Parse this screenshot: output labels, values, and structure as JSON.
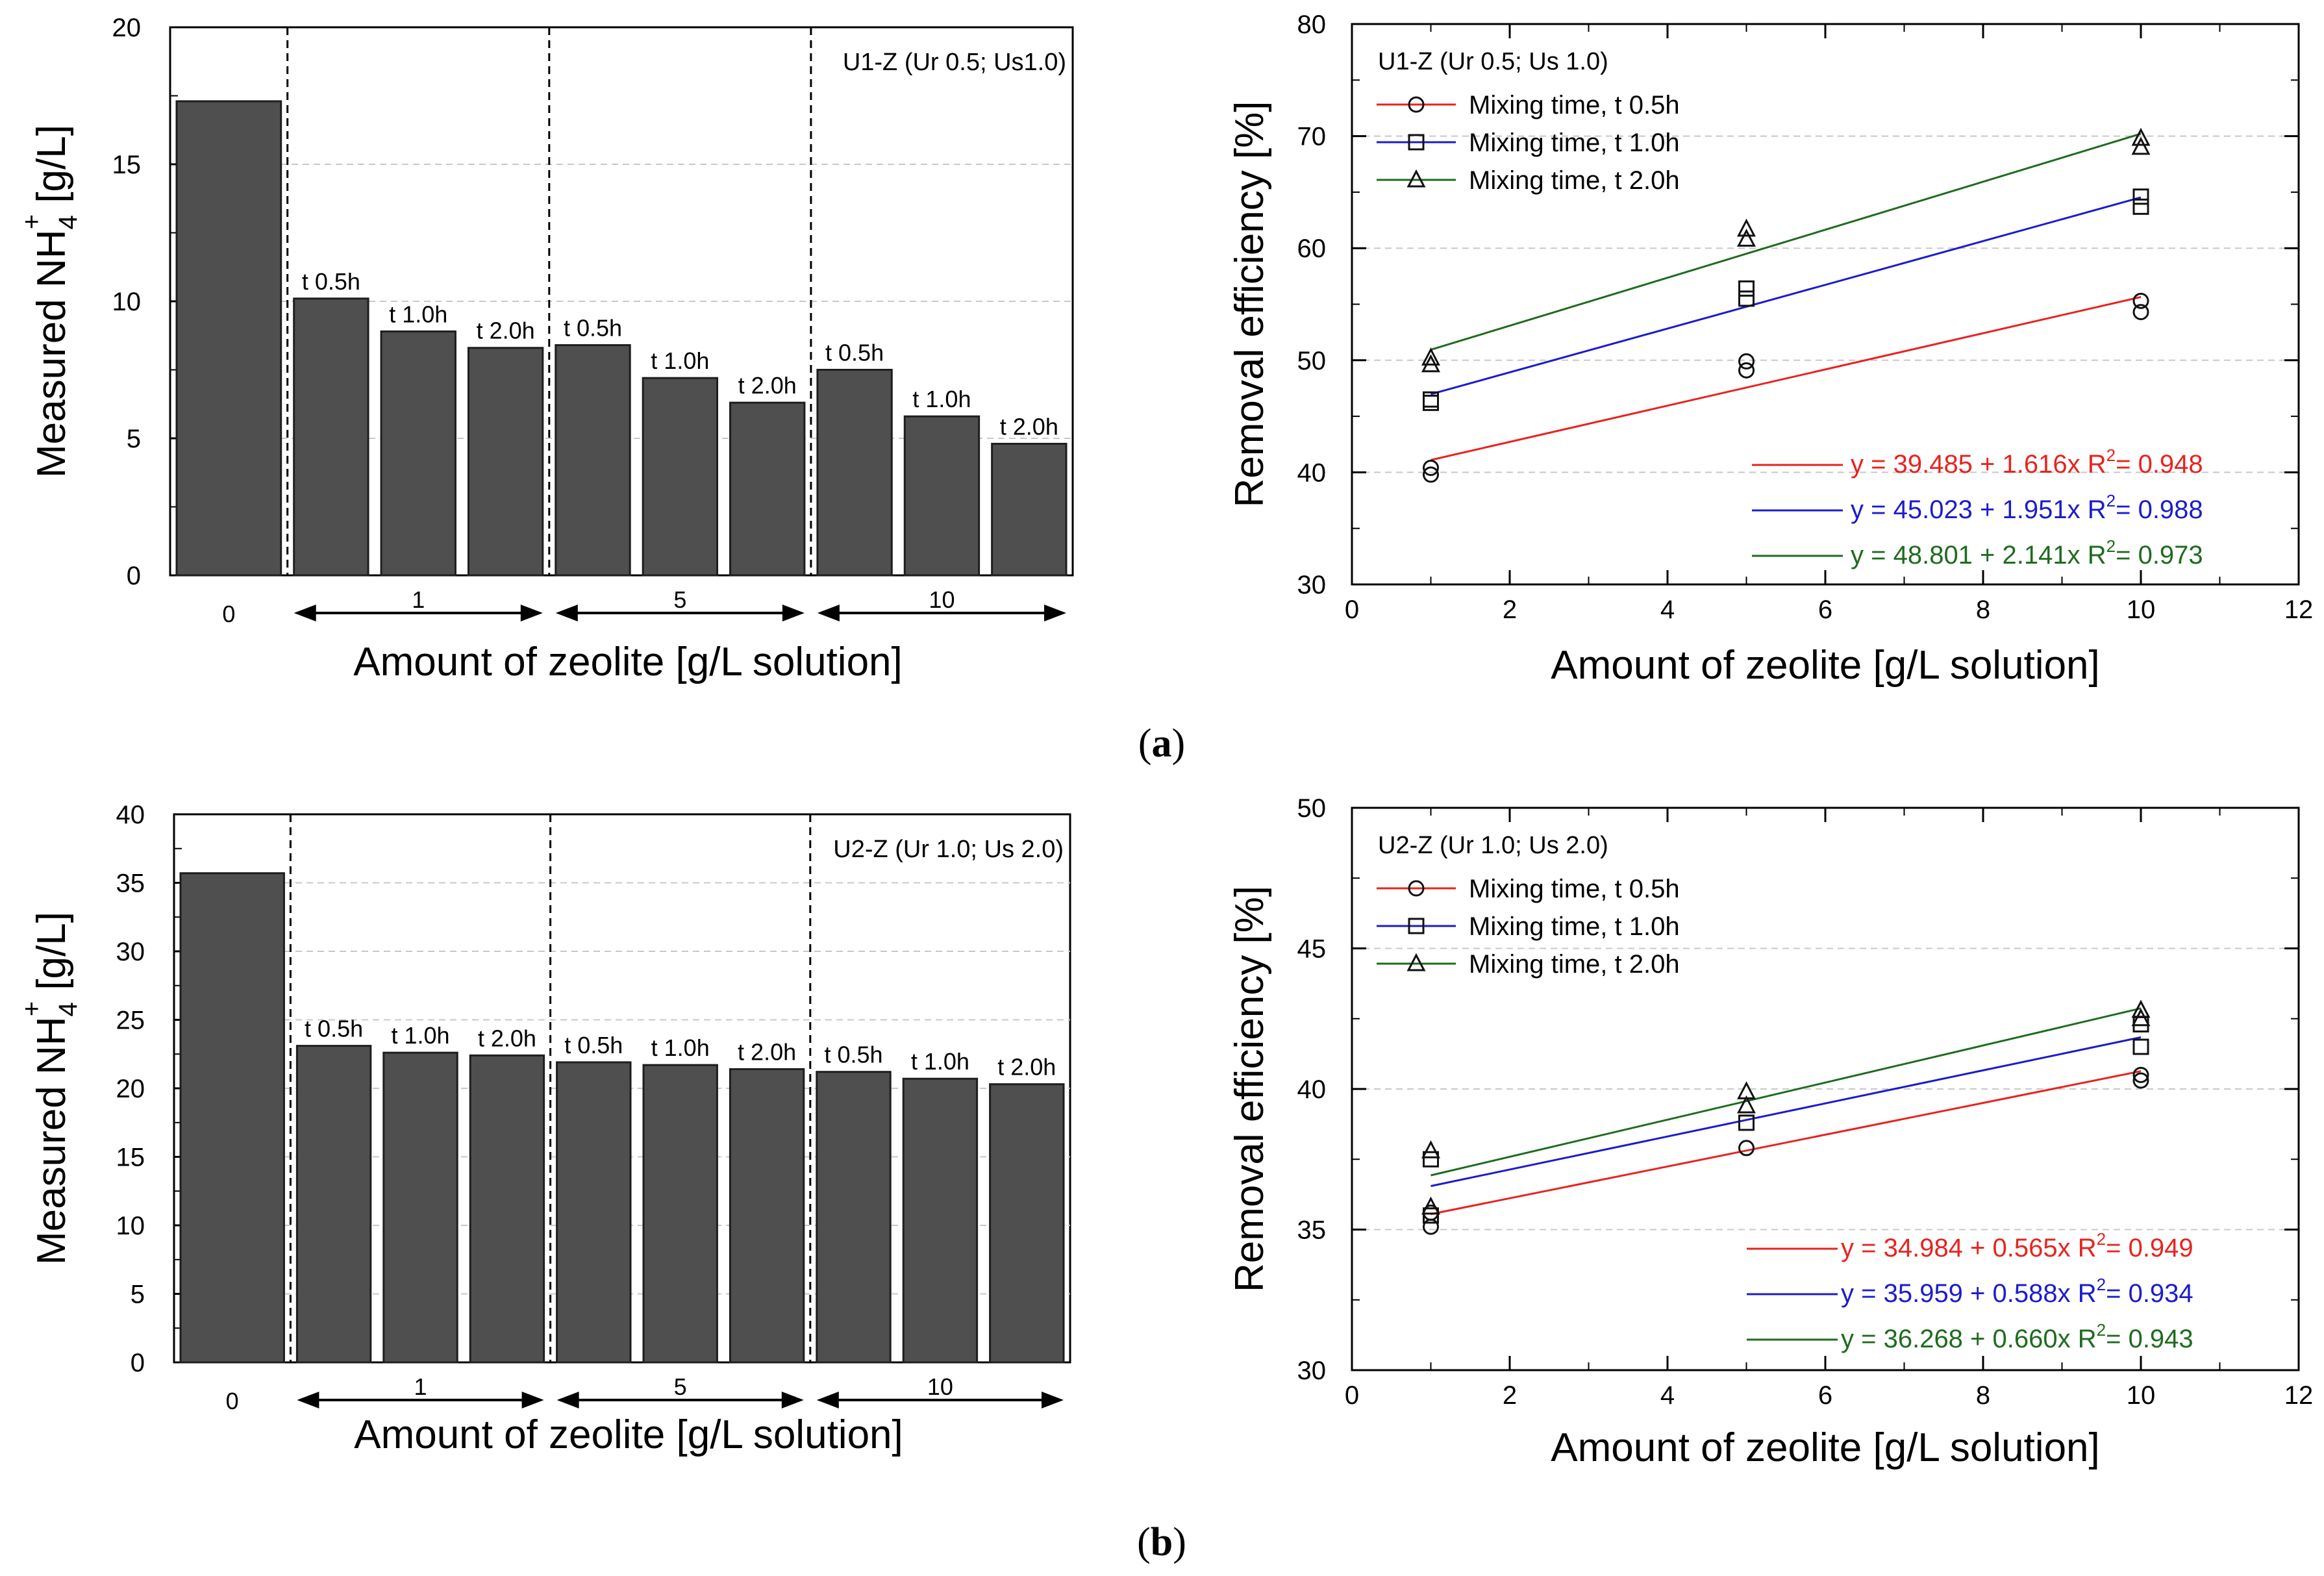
{
  "panel_labels": {
    "a": {
      "open": "(",
      "letter": "a",
      "close": ")"
    },
    "b": {
      "open": "(",
      "letter": "b",
      "close": ")"
    }
  },
  "chart_data": [
    {
      "id": "a-bar",
      "type": "bar",
      "ylabel": {
        "main": "Measured NH",
        "sub": "4",
        "sup": "+",
        "unit": " [g/L]"
      },
      "xlabel": "Amount of zeolite [g/L solution]",
      "ylim": [
        0,
        20
      ],
      "yticks": [
        0,
        5,
        10,
        15,
        20
      ],
      "annotation": "U1-Z (Ur 0.5; Us1.0)",
      "groups": [
        {
          "label": "0",
          "bars": [
            {
              "label": "",
              "value": 17.3
            }
          ]
        },
        {
          "label": "1",
          "bars": [
            {
              "label": "t 0.5h",
              "value": 10.1
            },
            {
              "label": "t 1.0h",
              "value": 8.9
            },
            {
              "label": "t 2.0h",
              "value": 8.3
            }
          ]
        },
        {
          "label": "5",
          "bars": [
            {
              "label": "t 0.5h",
              "value": 8.4
            },
            {
              "label": "t 1.0h",
              "value": 7.2
            },
            {
              "label": "t 2.0h",
              "value": 6.3
            }
          ]
        },
        {
          "label": "10",
          "bars": [
            {
              "label": "t 0.5h",
              "value": 7.5
            },
            {
              "label": "t 1.0h",
              "value": 5.8
            },
            {
              "label": "t 2.0h",
              "value": 4.8
            }
          ]
        }
      ]
    },
    {
      "id": "a-scatter",
      "type": "scatter",
      "ylabel": "Removal efficiency [%]",
      "xlabel": "Amount of zeolite [g/L solution]",
      "xlim": [
        0,
        12
      ],
      "ylim": [
        30,
        80
      ],
      "xticks": [
        0,
        2,
        4,
        6,
        8,
        10,
        12
      ],
      "yticks": [
        30,
        40,
        50,
        60,
        70,
        80
      ],
      "legend_title": "U1-Z (Ur 0.5; Us 1.0)",
      "series": [
        {
          "name": "Mixing time, t 0.5h",
          "color": "#e8231f",
          "marker": "circle",
          "points": [
            [
              1,
              40.4
            ],
            [
              1,
              39.8
            ],
            [
              5,
              49.9
            ],
            [
              5,
              49.1
            ],
            [
              10,
              55.3
            ],
            [
              10,
              54.3
            ]
          ],
          "fit": {
            "intercept": 39.485,
            "slope": 1.616,
            "r2": "0.948",
            "eq": "y = 39.485 + 1.616x",
            "r2_prefix": "R",
            "r2_sup": "2",
            "r2_text": "= 0.948"
          }
        },
        {
          "name": "Mixing time, t 1.0h",
          "color": "#1c1ccc",
          "marker": "square",
          "points": [
            [
              1,
              46.5
            ],
            [
              1,
              46.2
            ],
            [
              5,
              56.4
            ],
            [
              5,
              55.5
            ],
            [
              10,
              64.6
            ],
            [
              10,
              63.7
            ]
          ],
          "fit": {
            "intercept": 45.023,
            "slope": 1.951,
            "r2": "0.988",
            "eq": "y = 45.023 + 1.951x",
            "r2_prefix": "R",
            "r2_sup": "2",
            "r2_text": "= 0.988"
          }
        },
        {
          "name": "Mixing time, t 2.0h",
          "color": "#1f6b1f",
          "marker": "triangle",
          "points": [
            [
              1,
              50.2
            ],
            [
              1,
              49.6
            ],
            [
              5,
              61.7
            ],
            [
              5,
              60.8
            ],
            [
              10,
              69.8
            ],
            [
              10,
              69.0
            ]
          ],
          "fit": {
            "intercept": 48.801,
            "slope": 2.141,
            "r2": "0.973",
            "eq": "y = 48.801 + 2.141x",
            "r2_prefix": "R",
            "r2_sup": "2",
            "r2_text": "= 0.973"
          }
        }
      ]
    },
    {
      "id": "b-bar",
      "type": "bar",
      "ylabel": {
        "main": "Measured NH",
        "sub": "4",
        "sup": "+",
        "unit": " [g/L]"
      },
      "xlabel": "Amount of zeolite [g/L solution]",
      "ylim": [
        0,
        40
      ],
      "yticks": [
        0,
        5,
        10,
        15,
        20,
        25,
        30,
        35,
        40
      ],
      "annotation": "U2-Z (Ur 1.0; Us 2.0)",
      "groups": [
        {
          "label": "0",
          "bars": [
            {
              "label": "",
              "value": 35.7
            }
          ]
        },
        {
          "label": "1",
          "bars": [
            {
              "label": "t 0.5h",
              "value": 23.1
            },
            {
              "label": "t 1.0h",
              "value": 22.6
            },
            {
              "label": "t 2.0h",
              "value": 22.4
            }
          ]
        },
        {
          "label": "5",
          "bars": [
            {
              "label": "t 0.5h",
              "value": 21.9
            },
            {
              "label": "t 1.0h",
              "value": 21.7
            },
            {
              "label": "t 2.0h",
              "value": 21.4
            }
          ]
        },
        {
          "label": "10",
          "bars": [
            {
              "label": "t 0.5h",
              "value": 21.2
            },
            {
              "label": "t 1.0h",
              "value": 20.7
            },
            {
              "label": "t 2.0h",
              "value": 20.3
            }
          ]
        }
      ]
    },
    {
      "id": "b-scatter",
      "type": "scatter",
      "ylabel": "Removal efficiency [%]",
      "xlabel": "Amount of zeolite [g/L solution]",
      "xlim": [
        0,
        12
      ],
      "ylim": [
        30,
        50
      ],
      "xticks": [
        0,
        2,
        4,
        6,
        8,
        10,
        12
      ],
      "yticks": [
        30,
        35,
        40,
        45,
        50
      ],
      "legend_title": "U2-Z (Ur 1.0; Us 2.0)",
      "series": [
        {
          "name": "Mixing time, t 0.5h",
          "color": "#e8231f",
          "marker": "circle",
          "points": [
            [
              1,
              35.6
            ],
            [
              1,
              35.1
            ],
            [
              5,
              37.9
            ],
            [
              10,
              40.5
            ],
            [
              10,
              40.3
            ]
          ],
          "fit": {
            "intercept": 34.984,
            "slope": 0.565,
            "r2": "0.949",
            "eq": "y = 34.984 + 0.565x",
            "r2_prefix": "R",
            "r2_sup": "2",
            "r2_text": "= 0.949"
          }
        },
        {
          "name": "Mixing time, t 1.0h",
          "color": "#1c1ccc",
          "marker": "square",
          "points": [
            [
              1,
              37.5
            ],
            [
              1,
              35.5
            ],
            [
              5,
              38.8
            ],
            [
              10,
              42.3
            ],
            [
              10,
              41.5
            ]
          ],
          "fit": {
            "intercept": 35.959,
            "slope": 0.588,
            "r2": "0.934",
            "eq": "y = 35.959 + 0.588x",
            "r2_prefix": "R",
            "r2_sup": "2",
            "r2_text": "= 0.934"
          }
        },
        {
          "name": "Mixing time, t 2.0h",
          "color": "#1f6b1f",
          "marker": "triangle",
          "points": [
            [
              1,
              37.8
            ],
            [
              1,
              35.8
            ],
            [
              5,
              39.9
            ],
            [
              5,
              39.4
            ],
            [
              10,
              42.8
            ],
            [
              10,
              42.5
            ]
          ],
          "fit": {
            "intercept": 36.268,
            "slope": 0.66,
            "r2": "0.943",
            "eq": "y = 36.268 + 0.660x",
            "r2_prefix": "R",
            "r2_sup": "2",
            "r2_text": "= 0.943"
          }
        }
      ]
    }
  ]
}
